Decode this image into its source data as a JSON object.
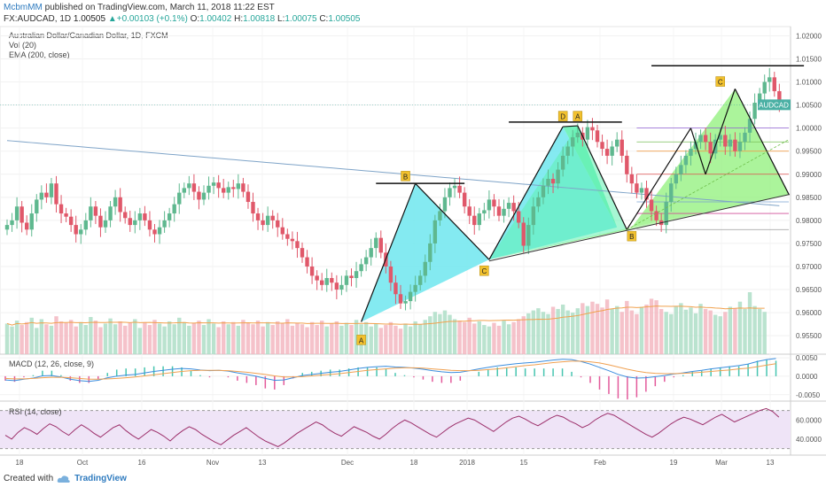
{
  "header": {
    "author": "McbmMM",
    "published_text": "published on TradingView.com, March 11, 2018 11:22 EST",
    "symbol_line": {
      "symbol": "FX:AUDCAD, 1D",
      "price": "1.00505",
      "change": "+0.00103 (+0.1%)",
      "O_label": "O:",
      "O": "1.00402",
      "H_label": "H:",
      "H": "1.00818",
      "L_label": "L:",
      "L": "1.00075",
      "C_label": "C:",
      "C": "1.00505"
    }
  },
  "legend": {
    "title": "Australian Dollar/Canadian Dollar, 1D, FXCM",
    "vol": "Vol (20)",
    "ema": "EMA (200, close)"
  },
  "price_badge": "AUDCAD",
  "macd_label": "MACD (12, 26, close, 9)",
  "rsi_label": "RSI (14, close)",
  "footer": {
    "created_with": "Created with",
    "brand": "TradingView"
  },
  "colors": {
    "up": "#5fb88f",
    "down": "#e0586a",
    "pattern1": "#6fe6ef",
    "pattern2": "#5ef0b0",
    "pattern3": "#8ff07a",
    "ema": "#7fa4c8",
    "macd": "#3a8dde",
    "signal": "#f0a050",
    "rsi": "#9c2f6a",
    "rsi_band": "#efe4f7"
  },
  "chart_data": [
    {
      "type": "candlestick",
      "title": "Australian Dollar/Canadian Dollar, 1D, FXCM",
      "x_tick_labels": [
        "18",
        "Oct",
        "16",
        "Nov",
        "13",
        "Dec",
        "18",
        "2018",
        "15",
        "Feb",
        "19",
        "Mar",
        "13"
      ],
      "y_tick_labels": [
        "0.95500",
        "0.96000",
        "0.96500",
        "0.97000",
        "0.97500",
        "0.98000",
        "0.98500",
        "0.99000",
        "0.99500",
        "1.00000",
        "1.00500",
        "1.01000",
        "1.01500",
        "1.02000"
      ],
      "ylim": [
        0.951,
        1.022
      ],
      "last_price": 1.00505,
      "closes": [
        0.979,
        0.98,
        0.983,
        0.9795,
        0.978,
        0.9815,
        0.9845,
        0.986,
        0.985,
        0.988,
        0.9835,
        0.9815,
        0.9808,
        0.979,
        0.977,
        0.978,
        0.98,
        0.983,
        0.981,
        0.9785,
        0.98,
        0.983,
        0.985,
        0.9818,
        0.9805,
        0.979,
        0.98,
        0.9815,
        0.98,
        0.978,
        0.977,
        0.9785,
        0.98,
        0.9815,
        0.9835,
        0.986,
        0.987,
        0.988,
        0.9862,
        0.9845,
        0.986,
        0.9875,
        0.9882,
        0.987,
        0.986,
        0.9872,
        0.9868,
        0.988,
        0.9862,
        0.984,
        0.9815,
        0.98,
        0.979,
        0.981,
        0.98,
        0.9785,
        0.977,
        0.976,
        0.9755,
        0.974,
        0.972,
        0.97,
        0.968,
        0.967,
        0.966,
        0.9675,
        0.9665,
        0.965,
        0.966,
        0.968,
        0.9675,
        0.969,
        0.9705,
        0.972,
        0.974,
        0.9762,
        0.973,
        0.97,
        0.9665,
        0.964,
        0.962,
        0.9625,
        0.9645,
        0.966,
        0.968,
        0.971,
        0.975,
        0.98,
        0.982,
        0.985,
        0.987,
        0.9875,
        0.986,
        0.983,
        0.981,
        0.979,
        0.9815,
        0.9822,
        0.9845,
        0.983,
        0.981,
        0.9825,
        0.9838,
        0.982,
        0.9795,
        0.9745,
        0.979,
        0.983,
        0.985,
        0.9875,
        0.989,
        0.988,
        0.991,
        0.994,
        0.996,
        0.998,
        0.999,
        0.9975,
        1.0002,
        0.9995,
        0.997,
        0.9955,
        0.994,
        0.996,
        0.9975,
        0.994,
        0.99,
        0.988,
        0.986,
        0.987,
        0.9845,
        0.982,
        0.98,
        0.979,
        0.984,
        0.988,
        0.99,
        0.992,
        0.994,
        0.9955,
        0.997,
        0.9985,
        0.997,
        0.9945,
        0.9975,
        0.9985,
        0.996,
        0.9975,
        0.995,
        0.997,
        0.999,
        1.002,
        1.0055,
        1.0075,
        1.01,
        1.011,
        1.008,
        1.005
      ]
    },
    {
      "type": "bar",
      "name": "Vol (20)",
      "values": [
        42,
        38,
        46,
        40,
        44,
        50,
        36,
        48,
        41,
        39,
        52,
        45,
        43,
        47,
        38,
        44,
        40,
        51,
        46,
        37,
        42,
        49,
        41,
        45,
        39,
        43,
        48,
        36,
        44,
        40,
        47,
        42,
        38,
        45,
        41,
        50,
        44,
        39,
        43,
        46,
        40,
        48,
        42,
        37,
        45,
        41,
        44,
        39,
        47,
        43,
        41,
        46,
        38,
        44,
        40,
        45,
        42,
        48,
        39,
        43,
        41,
        37,
        44,
        40,
        46,
        38,
        42,
        45,
        39,
        43,
        40,
        47,
        41,
        44,
        38,
        42,
        36,
        40,
        44,
        39,
        35,
        42,
        38,
        45,
        41,
        47,
        52,
        58,
        55,
        60,
        54,
        48,
        46,
        44,
        50,
        42,
        45,
        40,
        38,
        43,
        39,
        46,
        41,
        44,
        48,
        52,
        56,
        60,
        63,
        58,
        55,
        65,
        62,
        68,
        60,
        57,
        63,
        70,
        66,
        72,
        69,
        64,
        75,
        62,
        66,
        58,
        73,
        60,
        55,
        65,
        68,
        76,
        74,
        62,
        58,
        55,
        66,
        70,
        61,
        64,
        56,
        69,
        62,
        60,
        54,
        52,
        58,
        65,
        63,
        72,
        62,
        85,
        66,
        62,
        58
      ]
    },
    {
      "type": "line",
      "name": "MACD (12, 26, close, 9)",
      "y_tick_labels": [
        "0.0050",
        "0.0000",
        "-0.0050"
      ],
      "ylim": [
        -0.0065,
        0.0055
      ],
      "macd": [
        -0.001,
        -0.0012,
        -0.0008,
        -0.0005,
        0.0001,
        0.0002,
        -0.0002,
        -0.0008,
        -0.0012,
        -0.0014,
        -0.0011,
        -0.0004,
        0.0,
        0.0003,
        0.0005,
        0.0009,
        0.0013,
        0.0016,
        0.0019,
        0.0021,
        0.002,
        0.0017,
        0.0015,
        0.0016,
        0.0014,
        0.0009,
        0.0005,
        0.0,
        -0.0006,
        -0.0011,
        -0.001,
        -0.0004,
        0.0002,
        0.0005,
        0.0008,
        0.0011,
        0.0013,
        0.0017,
        0.0021,
        0.0024,
        0.0026,
        0.0027,
        0.0025,
        0.0024,
        0.0022,
        0.0019,
        0.0015,
        0.0012,
        0.001,
        0.0011,
        0.0015,
        0.002,
        0.0024,
        0.0028,
        0.0031,
        0.0034,
        0.0036,
        0.0038,
        0.0041,
        0.0044,
        0.0046,
        0.0045,
        0.004,
        0.0033,
        0.0024,
        0.0015,
        0.0005,
        -0.0002,
        -0.0005,
        -0.0004,
        -0.0001,
        0.0002,
        0.0006,
        0.0009,
        0.0013,
        0.0016,
        0.002,
        0.0023,
        0.0026,
        0.0029,
        0.0033,
        0.004,
        0.0045,
        0.0048
      ],
      "signal": [
        -0.0006,
        -0.0007,
        -0.0007,
        -0.0006,
        -0.0004,
        -0.0003,
        -0.0003,
        -0.0004,
        -0.0006,
        -0.0008,
        -0.0008,
        -0.0007,
        -0.0006,
        -0.0004,
        -0.0002,
        0.0001,
        0.0004,
        0.0007,
        0.001,
        0.0013,
        0.0015,
        0.0016,
        0.0016,
        0.0016,
        0.0015,
        0.0013,
        0.0011,
        0.0008,
        0.0005,
        0.0001,
        -0.0002,
        -0.0002,
        -0.0001,
        0.0001,
        0.0003,
        0.0005,
        0.0007,
        0.001,
        0.0013,
        0.0016,
        0.0018,
        0.002,
        0.0022,
        0.0023,
        0.0023,
        0.0022,
        0.002,
        0.0018,
        0.0016,
        0.0015,
        0.0015,
        0.0016,
        0.0018,
        0.002,
        0.0023,
        0.0026,
        0.0029,
        0.0031,
        0.0034,
        0.0037,
        0.0039,
        0.0041,
        0.0041,
        0.0039,
        0.0036,
        0.0031,
        0.0025,
        0.0019,
        0.0014,
        0.001,
        0.0008,
        0.0007,
        0.0007,
        0.0008,
        0.0009,
        0.0011,
        0.0013,
        0.0015,
        0.0017,
        0.002,
        0.0022,
        0.0026,
        0.003,
        0.0034
      ]
    },
    {
      "type": "line",
      "name": "RSI (14, close)",
      "y_tick_labels": [
        "60.0000",
        "40.0000"
      ],
      "ylim": [
        25,
        78
      ],
      "upper_band": 70,
      "lower_band": 30,
      "values": [
        44,
        40,
        47,
        52,
        49,
        45,
        51,
        56,
        53,
        48,
        44,
        50,
        55,
        51,
        46,
        42,
        47,
        52,
        55,
        49,
        44,
        40,
        45,
        50,
        47,
        43,
        38,
        44,
        49,
        53,
        50,
        45,
        41,
        37,
        34,
        39,
        44,
        48,
        52,
        47,
        42,
        38,
        35,
        32,
        36,
        41,
        46,
        50,
        54,
        58,
        55,
        50,
        46,
        43,
        48,
        53,
        50,
        47,
        43,
        40,
        45,
        51,
        56,
        60,
        57,
        53,
        49,
        45,
        42,
        47,
        52,
        56,
        59,
        62,
        60,
        56,
        52,
        48,
        53,
        58,
        62,
        64,
        61,
        57,
        54,
        58,
        62,
        65,
        63,
        59,
        56,
        52,
        55,
        60,
        64,
        67,
        65,
        61,
        57,
        53,
        49,
        45,
        42,
        46,
        51,
        56,
        60,
        63,
        61,
        58,
        55,
        59,
        63,
        66,
        62,
        58,
        61,
        64,
        67,
        70,
        72,
        69,
        63
      ]
    }
  ]
}
